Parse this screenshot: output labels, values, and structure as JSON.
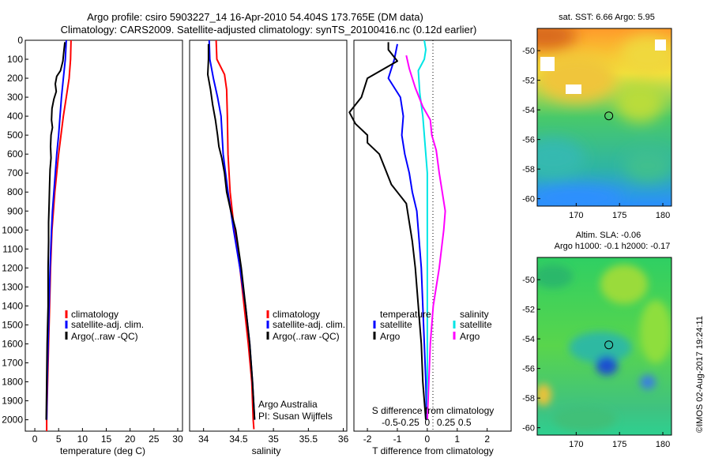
{
  "header": {
    "line1": "Argo profile: csiro 5903227_14 16-Apr-2010 54.404S 173.765E (DM data)",
    "line2": "Climatology: CARS2009. Satellite-adjusted climatology: synTS_20100416.nc (0.12d earlier)"
  },
  "credit": "©IMOS 02-Aug-2017 19:24:11",
  "colors": {
    "clim": "#ff0000",
    "sat": "#0000ff",
    "argo": "#000000",
    "sal_sat": "#00e5e5",
    "sal_argo": "#ff00ff"
  },
  "chart_data": [
    {
      "type": "line",
      "panel": "temperature",
      "xlabel": "temperature (deg C)",
      "ylabel": "",
      "xlim": [
        -2,
        31
      ],
      "ylim": [
        2060,
        0
      ],
      "xticks": [
        0,
        5,
        10,
        15,
        20,
        25,
        30
      ],
      "yticks": [
        0,
        100,
        200,
        300,
        400,
        500,
        600,
        700,
        800,
        900,
        1000,
        1100,
        1200,
        1300,
        1400,
        1500,
        1600,
        1700,
        1800,
        1900,
        2000
      ],
      "legend": {
        "position": "lower-right",
        "entries": [
          "climatology",
          "satellite-adj. clim.",
          "Argo(..raw -QC)"
        ]
      },
      "series": [
        {
          "name": "climatology",
          "color": "#ff0000",
          "points": [
            [
              7.6,
              0
            ],
            [
              7.5,
              100
            ],
            [
              7.2,
              200
            ],
            [
              6.6,
              300
            ],
            [
              6.0,
              400
            ],
            [
              5.5,
              500
            ],
            [
              5.0,
              600
            ],
            [
              4.6,
              700
            ],
            [
              4.2,
              800
            ],
            [
              3.9,
              900
            ],
            [
              3.6,
              1000
            ],
            [
              3.3,
              1200
            ],
            [
              3.1,
              1400
            ],
            [
              2.9,
              1600
            ],
            [
              2.7,
              1800
            ],
            [
              2.5,
              2000
            ],
            [
              2.5,
              2060
            ]
          ]
        },
        {
          "name": "satellite-adj. clim.",
          "color": "#0000ff",
          "points": [
            [
              6.6,
              0
            ],
            [
              6.4,
              100
            ],
            [
              6.0,
              200
            ],
            [
              5.6,
              300
            ],
            [
              5.3,
              400
            ],
            [
              5.0,
              500
            ],
            [
              4.6,
              600
            ],
            [
              4.3,
              700
            ],
            [
              4.0,
              800
            ],
            [
              3.7,
              900
            ],
            [
              3.5,
              1000
            ],
            [
              3.2,
              1200
            ],
            [
              3.0,
              1400
            ],
            [
              2.8,
              1600
            ],
            [
              2.6,
              1800
            ],
            [
              2.5,
              2000
            ]
          ]
        },
        {
          "name": "Argo(..raw -QC)",
          "color": "#000000",
          "points": [
            [
              6.3,
              10
            ],
            [
              6.1,
              60
            ],
            [
              5.9,
              110
            ],
            [
              5.4,
              160
            ],
            [
              4.6,
              190
            ],
            [
              4.3,
              230
            ],
            [
              4.5,
              270
            ],
            [
              4.0,
              310
            ],
            [
              3.6,
              360
            ],
            [
              3.5,
              420
            ],
            [
              3.7,
              460
            ],
            [
              3.4,
              500
            ],
            [
              3.3,
              560
            ],
            [
              3.4,
              620
            ],
            [
              3.2,
              680
            ],
            [
              3.1,
              760
            ],
            [
              3.0,
              860
            ],
            [
              2.9,
              960
            ],
            [
              2.9,
              1060
            ],
            [
              2.8,
              1200
            ],
            [
              2.8,
              1400
            ],
            [
              2.6,
              1600
            ],
            [
              2.5,
              1800
            ],
            [
              2.4,
              2000
            ]
          ]
        }
      ]
    },
    {
      "type": "line",
      "panel": "salinity",
      "xlabel": "salinity",
      "ylabel": "",
      "xlim": [
        33.8,
        36.05
      ],
      "ylim": [
        2060,
        0
      ],
      "xticks": [
        34,
        34.5,
        35,
        35.5,
        36
      ],
      "legend": {
        "position": "lower-right",
        "entries": [
          "climatology",
          "satellite-adj. clim.",
          "Argo(..raw -QC)"
        ]
      },
      "annotations": [
        "Argo Australia",
        "PI: Susan Wijffels"
      ],
      "series": [
        {
          "name": "climatology",
          "color": "#ff0000",
          "points": [
            [
              34.18,
              0
            ],
            [
              34.19,
              100
            ],
            [
              34.3,
              180
            ],
            [
              34.33,
              260
            ],
            [
              34.34,
              400
            ],
            [
              34.35,
              600
            ],
            [
              34.38,
              800
            ],
            [
              34.44,
              1000
            ],
            [
              34.52,
              1200
            ],
            [
              34.58,
              1400
            ],
            [
              34.64,
              1600
            ],
            [
              34.69,
              1800
            ],
            [
              34.71,
              2000
            ],
            [
              34.72,
              2050
            ]
          ]
        },
        {
          "name": "satellite-adj. clim.",
          "color": "#0000ff",
          "points": [
            [
              34.08,
              0
            ],
            [
              34.09,
              100
            ],
            [
              34.14,
              200
            ],
            [
              34.2,
              300
            ],
            [
              34.25,
              400
            ],
            [
              34.28,
              600
            ],
            [
              34.35,
              800
            ],
            [
              34.43,
              1000
            ],
            [
              34.52,
              1200
            ],
            [
              34.6,
              1400
            ],
            [
              34.66,
              1600
            ],
            [
              34.7,
              1800
            ],
            [
              34.73,
              2000
            ]
          ]
        },
        {
          "name": "Argo(..raw -QC)",
          "color": "#000000",
          "points": [
            [
              34.07,
              20
            ],
            [
              34.07,
              100
            ],
            [
              34.06,
              180
            ],
            [
              34.1,
              260
            ],
            [
              34.13,
              340
            ],
            [
              34.17,
              420
            ],
            [
              34.2,
              500
            ],
            [
              34.22,
              560
            ],
            [
              34.26,
              620
            ],
            [
              34.3,
              700
            ],
            [
              34.33,
              800
            ],
            [
              34.39,
              900
            ],
            [
              34.46,
              1000
            ],
            [
              34.54,
              1200
            ],
            [
              34.6,
              1400
            ],
            [
              34.66,
              1600
            ],
            [
              34.7,
              1800
            ],
            [
              34.73,
              2000
            ]
          ]
        }
      ]
    },
    {
      "type": "line",
      "panel": "difference",
      "xlabel": "T difference from climatology",
      "x2label": "S difference from climatology",
      "xlim": [
        -2.45,
        2.8
      ],
      "ylim": [
        2060,
        0
      ],
      "xticks": [
        -2,
        -1,
        0,
        1,
        2
      ],
      "x2ticks": [
        "-0.5",
        "-0.25",
        "0",
        "0.25",
        "0.5"
      ],
      "legend": {
        "position": "lower-right",
        "entries": [
          "temperature",
          "satellite",
          "Argo",
          "salinity",
          "satellite",
          "Argo"
        ]
      },
      "series": [
        {
          "name": "temperature satellite",
          "color": "#0000ff",
          "points": [
            [
              -1.0,
              20
            ],
            [
              -1.1,
              100
            ],
            [
              -1.3,
              200
            ],
            [
              -0.9,
              300
            ],
            [
              -0.8,
              400
            ],
            [
              -0.85,
              500
            ],
            [
              -0.75,
              600
            ],
            [
              -0.6,
              700
            ],
            [
              -0.5,
              800
            ],
            [
              -0.35,
              900
            ],
            [
              -0.3,
              1000
            ],
            [
              -0.2,
              1200
            ],
            [
              -0.15,
              1400
            ],
            [
              -0.1,
              1600
            ],
            [
              -0.05,
              1800
            ],
            [
              -0.02,
              2000
            ]
          ]
        },
        {
          "name": "temperature Argo",
          "color": "#000000",
          "points": [
            [
              -1.3,
              10
            ],
            [
              -1.3,
              50
            ],
            [
              -1.0,
              110
            ],
            [
              -2.0,
              200
            ],
            [
              -2.2,
              300
            ],
            [
              -2.6,
              380
            ],
            [
              -2.4,
              440
            ],
            [
              -2.0,
              500
            ],
            [
              -2.0,
              540
            ],
            [
              -1.6,
              600
            ],
            [
              -1.4,
              680
            ],
            [
              -1.2,
              760
            ],
            [
              -0.7,
              860
            ],
            [
              -0.6,
              960
            ],
            [
              -0.5,
              1060
            ],
            [
              -0.4,
              1200
            ],
            [
              -0.3,
              1400
            ],
            [
              -0.2,
              1600
            ],
            [
              -0.15,
              1800
            ],
            [
              -0.1,
              1900
            ],
            [
              -0.05,
              2000
            ]
          ]
        },
        {
          "name": "salinity satellite",
          "color": "#00e5e5",
          "points": [
            [
              -0.1,
              0
            ],
            [
              -0.05,
              50
            ],
            [
              -0.1,
              100
            ],
            [
              -0.3,
              160
            ],
            [
              -0.25,
              280
            ],
            [
              -0.15,
              400
            ],
            [
              -0.1,
              500
            ],
            [
              -0.05,
              600
            ],
            [
              0.0,
              700
            ],
            [
              0.0,
              900
            ],
            [
              0.0,
              1200
            ],
            [
              0.0,
              1500
            ],
            [
              0.0,
              2000
            ]
          ]
        },
        {
          "name": "salinity Argo",
          "color": "#ff00ff",
          "points": [
            [
              -0.7,
              80
            ],
            [
              -0.6,
              150
            ],
            [
              -0.4,
              250
            ],
            [
              -0.15,
              350
            ],
            [
              0.1,
              420
            ],
            [
              0.15,
              500
            ],
            [
              0.3,
              580
            ],
            [
              0.4,
              700
            ],
            [
              0.5,
              800
            ],
            [
              0.6,
              900
            ],
            [
              0.55,
              1000
            ],
            [
              0.4,
              1200
            ],
            [
              0.2,
              1400
            ],
            [
              0.1,
              1600
            ],
            [
              0.05,
              1800
            ],
            [
              0.0,
              2000
            ]
          ]
        }
      ]
    },
    {
      "type": "heatmap",
      "panel": "sst-map",
      "title": "sat. SST: 6.66  Argo: 5.95",
      "xlim": [
        165.5,
        181
      ],
      "ylim": [
        -60.5,
        -48.5
      ],
      "xticks": [
        170,
        175,
        180
      ],
      "yticks": [
        -60,
        -58,
        -56,
        -54,
        -52,
        -50
      ],
      "marker": {
        "lon": 173.765,
        "lat": -54.404
      }
    },
    {
      "type": "heatmap",
      "panel": "sla-map",
      "title": "Altim. SLA: -0.06",
      "subtitle": "Argo h1000: -0.1  h2000: -0.17",
      "xlim": [
        165.5,
        181
      ],
      "ylim": [
        -60.5,
        -48.5
      ],
      "xticks": [
        170,
        175,
        180
      ],
      "yticks": [
        -60,
        -58,
        -56,
        -54,
        -52,
        -50
      ],
      "marker": {
        "lon": 173.765,
        "lat": -54.404
      }
    }
  ]
}
